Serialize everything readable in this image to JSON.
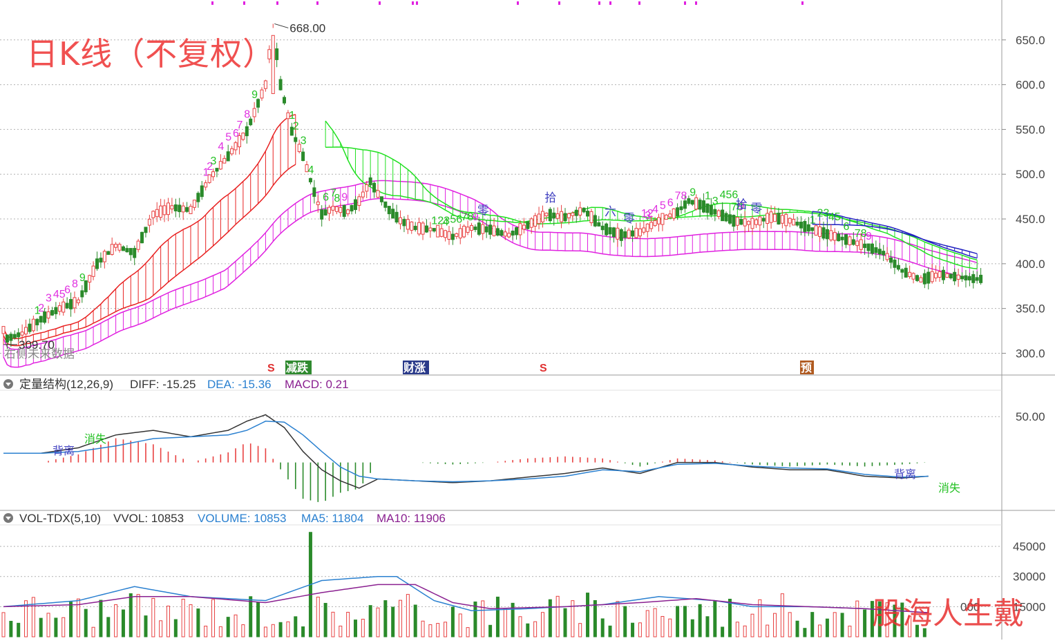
{
  "header": {
    "chart_title": "日K线（不复权）",
    "watermark": "股海人生戴",
    "future_hint": "右侧未来数据",
    "max_label": "668.00",
    "min_label": "309.70",
    "event_markers": [
      {
        "label": "S",
        "color": "#e03030",
        "bg": "#ffffff"
      },
      {
        "label": "减跌",
        "color": "#ffffff",
        "bg": "#2f8a2f"
      },
      {
        "label": "财涨",
        "color": "#ffffff",
        "bg": "#2a3a8a"
      },
      {
        "label": "S",
        "color": "#e03030",
        "bg": "#ffffff"
      },
      {
        "label": "预",
        "color": "#ffffff",
        "bg": "#b05a20"
      }
    ]
  },
  "macd": {
    "name": "定量结构(12,26,9)",
    "diff_label": "DIFF: -15.25",
    "dea_label": "DEA: -15.36",
    "macd_label": "MACD: 0.21",
    "annotations": [
      "背离",
      "消失",
      "背离",
      "消失"
    ]
  },
  "volume": {
    "name": "VOL-TDX(5,10)",
    "vvol_label": "VVOL: 10853",
    "volume_label": "VOLUME: 10853",
    "ma5_label": "MA5: 11804",
    "ma10_label": "MA10: 11906"
  },
  "colors": {
    "up": "#e84040",
    "down": "#2a8a2a",
    "grid": "#b0b0b0",
    "ribbon_red": "#e82020",
    "ribbon_magenta": "#e020e0",
    "ribbon_green": "#20e020",
    "ribbon_blue": "#2020c0",
    "diff": "#333333",
    "dea": "#2a80d0",
    "ma5": "#2a80d0",
    "ma10": "#8a2090"
  },
  "chart_data": [
    {
      "type": "candlestick",
      "title": "日K线（不复权）",
      "y_ticks": [
        "650.0",
        "600.0",
        "550.0",
        "500.0",
        "450.0",
        "400.0",
        "350.0",
        "300.0"
      ],
      "ylim": [
        278,
        683
      ],
      "grid": true,
      "anchors": [
        [
          0,
          315,
          0
        ],
        [
          5,
          322,
          0
        ],
        [
          10,
          338,
          0
        ],
        [
          15,
          350,
          1
        ],
        [
          20,
          358,
          1
        ],
        [
          25,
          400,
          1
        ],
        [
          30,
          420,
          1
        ],
        [
          35,
          412,
          0
        ],
        [
          40,
          455,
          1
        ],
        [
          45,
          463,
          1
        ],
        [
          50,
          460,
          0
        ],
        [
          55,
          495,
          1
        ],
        [
          60,
          520,
          1
        ],
        [
          65,
          548,
          1
        ],
        [
          70,
          600,
          1
        ],
        [
          72,
          668,
          1
        ],
        [
          74,
          600,
          0
        ],
        [
          77,
          548,
          0
        ],
        [
          80,
          520,
          0
        ],
        [
          83,
          480,
          0
        ],
        [
          85,
          455,
          0
        ],
        [
          88,
          462,
          1
        ],
        [
          92,
          458,
          0
        ],
        [
          95,
          470,
          1
        ],
        [
          98,
          492,
          1
        ],
        [
          100,
          478,
          0
        ],
        [
          103,
          460,
          0
        ],
        [
          106,
          448,
          0
        ],
        [
          110,
          440,
          0
        ],
        [
          115,
          438,
          0
        ],
        [
          120,
          430,
          0
        ],
        [
          125,
          440,
          1
        ],
        [
          130,
          438,
          0
        ],
        [
          135,
          432,
          0
        ],
        [
          140,
          443,
          1
        ],
        [
          145,
          455,
          1
        ],
        [
          150,
          452,
          0
        ],
        [
          155,
          460,
          1
        ],
        [
          160,
          440,
          0
        ],
        [
          165,
          432,
          0
        ],
        [
          170,
          435,
          1
        ],
        [
          175,
          448,
          1
        ],
        [
          180,
          458,
          1
        ],
        [
          183,
          470,
          1
        ],
        [
          186,
          466,
          0
        ],
        [
          190,
          458,
          0
        ],
        [
          195,
          448,
          0
        ],
        [
          200,
          445,
          1
        ],
        [
          205,
          452,
          1
        ],
        [
          210,
          448,
          0
        ],
        [
          215,
          440,
          0
        ],
        [
          220,
          433,
          0
        ],
        [
          225,
          427,
          0
        ],
        [
          230,
          420,
          0
        ],
        [
          235,
          412,
          0
        ],
        [
          240,
          392,
          0
        ],
        [
          245,
          382,
          0
        ],
        [
          250,
          388,
          1
        ],
        [
          255,
          385,
          0
        ],
        [
          260,
          383,
          0
        ]
      ],
      "magic_labels": [
        {
          "text": "1",
          "i": 9,
          "c": "g"
        },
        {
          "text": "2",
          "i": 10,
          "c": "m"
        },
        {
          "text": "3",
          "i": 12,
          "c": "m"
        },
        {
          "text": "45",
          "i": 14,
          "c": "m"
        },
        {
          "text": "6",
          "i": 17,
          "c": "m"
        },
        {
          "text": "8",
          "i": 19,
          "c": "m"
        },
        {
          "text": "9",
          "i": 21,
          "c": "g"
        },
        {
          "text": "1",
          "i": 54,
          "c": "m"
        },
        {
          "text": "2",
          "i": 55,
          "c": "m"
        },
        {
          "text": "3",
          "i": 56,
          "c": "g"
        },
        {
          "text": "4",
          "i": 58,
          "c": "m"
        },
        {
          "text": "5",
          "i": 60,
          "c": "m"
        },
        {
          "text": "6",
          "i": 62,
          "c": "m"
        },
        {
          "text": "7",
          "i": 63,
          "c": "m"
        },
        {
          "text": "8",
          "i": 65,
          "c": "m"
        },
        {
          "text": "9",
          "i": 67,
          "c": "g"
        },
        {
          "text": "1",
          "i": 77,
          "c": "g"
        },
        {
          "text": "2",
          "i": 78,
          "c": "g"
        },
        {
          "text": "3",
          "i": 80,
          "c": "g"
        },
        {
          "text": "4",
          "i": 82,
          "c": "g"
        },
        {
          "text": "6",
          "i": 86,
          "c": "g"
        },
        {
          "text": "7",
          "i": 88,
          "c": "g"
        },
        {
          "text": "8",
          "i": 89,
          "c": "g"
        },
        {
          "text": "9",
          "i": 91,
          "c": "m"
        },
        {
          "text": "123",
          "i": 115,
          "c": "g"
        },
        {
          "text": "4",
          "i": 118,
          "c": "g"
        },
        {
          "text": "56",
          "i": 120,
          "c": "g"
        },
        {
          "text": "78",
          "i": 123,
          "c": "g"
        },
        {
          "text": "9",
          "i": 126,
          "c": "m"
        },
        {
          "text": "12",
          "i": 171,
          "c": "m"
        },
        {
          "text": "3",
          "i": 172,
          "c": "m"
        },
        {
          "text": "4",
          "i": 174,
          "c": "m"
        },
        {
          "text": "5",
          "i": 176,
          "c": "m"
        },
        {
          "text": "6",
          "i": 178,
          "c": "m"
        },
        {
          "text": "78",
          "i": 180,
          "c": "m"
        },
        {
          "text": "9",
          "i": 184,
          "c": "g"
        },
        {
          "text": "1",
          "i": 188,
          "c": "g"
        },
        {
          "text": "3",
          "i": 190,
          "c": "g"
        },
        {
          "text": "456",
          "i": 192,
          "c": "g"
        },
        {
          "text": "78",
          "i": 195,
          "c": "g"
        },
        {
          "text": "9",
          "i": 197,
          "c": "m"
        },
        {
          "text": "1",
          "i": 216,
          "c": "g"
        },
        {
          "text": "23",
          "i": 218,
          "c": "g"
        },
        {
          "text": "45",
          "i": 221,
          "c": "g"
        },
        {
          "text": "6",
          "i": 225,
          "c": "g"
        },
        {
          "text": "78",
          "i": 228,
          "c": "g"
        },
        {
          "text": "9",
          "i": 231,
          "c": "m"
        }
      ],
      "chinese_labels": [
        {
          "text": "拾",
          "i": 146,
          "c": "b"
        },
        {
          "text": "六",
          "i": 162,
          "c": "b"
        },
        {
          "text": "零",
          "i": 167,
          "c": "b"
        },
        {
          "text": "拾",
          "i": 197,
          "c": "b"
        },
        {
          "text": "零",
          "i": 201,
          "c": "b"
        },
        {
          "text": "零",
          "i": 128,
          "c": "b"
        }
      ]
    },
    {
      "type": "bar",
      "title": "定量结构(12,26,9)",
      "series": [
        {
          "name": "DIFF"
        },
        {
          "name": "DEA"
        },
        {
          "name": "MACD"
        }
      ],
      "y_ticks": [
        "50.00"
      ],
      "ylim": [
        -50,
        75
      ],
      "diff_anchors": [
        [
          0,
          10
        ],
        [
          10,
          10
        ],
        [
          20,
          16
        ],
        [
          30,
          30
        ],
        [
          40,
          35
        ],
        [
          50,
          28
        ],
        [
          60,
          35
        ],
        [
          65,
          45
        ],
        [
          70,
          52
        ],
        [
          75,
          38
        ],
        [
          80,
          12
        ],
        [
          85,
          -8
        ],
        [
          90,
          -20
        ],
        [
          95,
          -28
        ],
        [
          100,
          -18
        ],
        [
          110,
          -20
        ],
        [
          120,
          -22
        ],
        [
          130,
          -20
        ],
        [
          140,
          -16
        ],
        [
          150,
          -12
        ],
        [
          160,
          -6
        ],
        [
          170,
          -12
        ],
        [
          180,
          0
        ],
        [
          190,
          0
        ],
        [
          200,
          -5
        ],
        [
          210,
          -8
        ],
        [
          220,
          -8
        ],
        [
          230,
          -15
        ],
        [
          240,
          -17
        ],
        [
          247,
          -15
        ]
      ],
      "dea_anchors": [
        [
          0,
          10
        ],
        [
          10,
          10
        ],
        [
          20,
          12
        ],
        [
          30,
          18
        ],
        [
          40,
          26
        ],
        [
          50,
          28
        ],
        [
          60,
          30
        ],
        [
          65,
          35
        ],
        [
          70,
          45
        ],
        [
          75,
          44
        ],
        [
          80,
          30
        ],
        [
          85,
          12
        ],
        [
          90,
          -5
        ],
        [
          95,
          -15
        ],
        [
          100,
          -18
        ],
        [
          110,
          -20
        ],
        [
          120,
          -21
        ],
        [
          130,
          -20
        ],
        [
          140,
          -18
        ],
        [
          150,
          -15
        ],
        [
          160,
          -8
        ],
        [
          170,
          -10
        ],
        [
          180,
          -2
        ],
        [
          190,
          -1
        ],
        [
          200,
          -4
        ],
        [
          210,
          -6
        ],
        [
          220,
          -7
        ],
        [
          230,
          -13
        ],
        [
          240,
          -16
        ],
        [
          247,
          -15
        ]
      ]
    },
    {
      "type": "bar",
      "title": "VOL-TDX(5,10)",
      "series": [
        {
          "name": "VOLUME"
        },
        {
          "name": "MA5"
        },
        {
          "name": "MA10"
        }
      ],
      "y_ticks": [
        "45000",
        "30000",
        "15000"
      ],
      "ylim": [
        0,
        55000
      ],
      "spikes": [
        [
          82,
          52000,
          0
        ],
        [
          99,
          50000,
          0
        ],
        [
          33,
          27000,
          1
        ],
        [
          197,
          31000,
          1
        ],
        [
          29,
          24000,
          0
        ],
        [
          152,
          18000,
          1
        ],
        [
          165,
          28000,
          0
        ]
      ],
      "ma5_anchors": [
        [
          0,
          15000
        ],
        [
          20,
          18000
        ],
        [
          35,
          25000
        ],
        [
          50,
          20000
        ],
        [
          70,
          18000
        ],
        [
          85,
          28000
        ],
        [
          100,
          30000
        ],
        [
          105,
          30000
        ],
        [
          115,
          18000
        ],
        [
          125,
          13000
        ],
        [
          140,
          14000
        ],
        [
          160,
          16000
        ],
        [
          175,
          20000
        ],
        [
          190,
          18000
        ],
        [
          200,
          15000
        ],
        [
          215,
          15000
        ],
        [
          230,
          14000
        ],
        [
          247,
          12000
        ]
      ],
      "ma10_anchors": [
        [
          0,
          15000
        ],
        [
          20,
          16000
        ],
        [
          35,
          20000
        ],
        [
          50,
          20000
        ],
        [
          70,
          17000
        ],
        [
          85,
          22000
        ],
        [
          100,
          26000
        ],
        [
          110,
          26000
        ],
        [
          120,
          17000
        ],
        [
          130,
          14000
        ],
        [
          150,
          15000
        ],
        [
          170,
          17000
        ],
        [
          185,
          19000
        ],
        [
          200,
          16000
        ],
        [
          215,
          15000
        ],
        [
          230,
          14000
        ],
        [
          247,
          12000
        ]
      ]
    }
  ]
}
